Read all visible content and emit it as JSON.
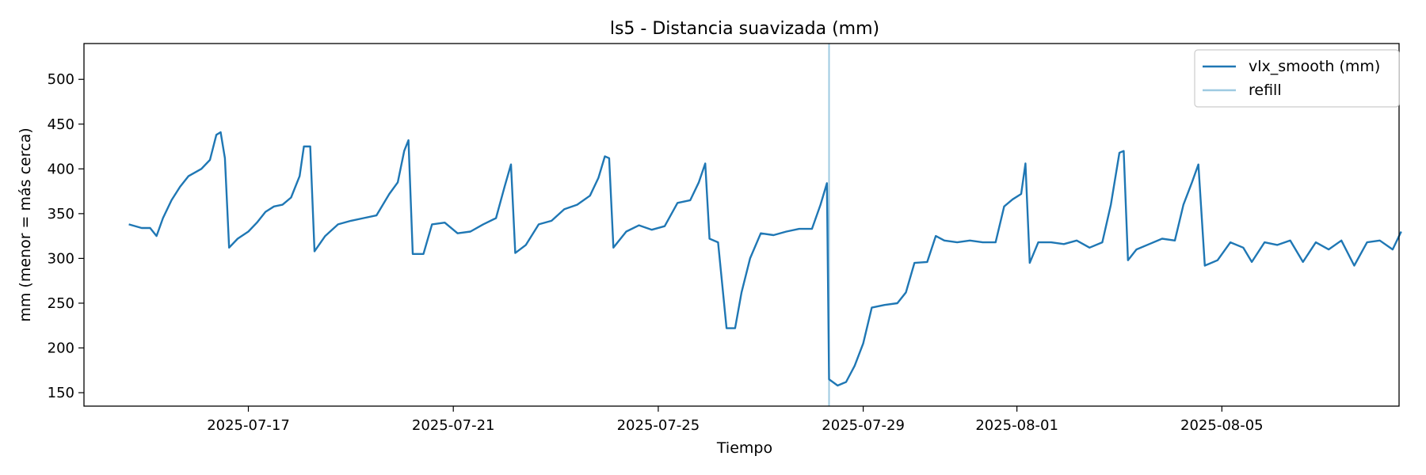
{
  "chart_data": {
    "type": "line",
    "title": "ls5 - Distancia suavizada (mm)",
    "xlabel": "Tiempo",
    "ylabel": "mm (menor = más cerca)",
    "x_range": [
      "2025-07-13T19:00",
      "2025-08-08T11:00"
    ],
    "ylim": [
      135,
      540
    ],
    "x_ticks": [
      "2025-07-17",
      "2025-07-21",
      "2025-07-25",
      "2025-07-29",
      "2025-08-01",
      "2025-08-05"
    ],
    "y_ticks": [
      150,
      200,
      250,
      300,
      350,
      400,
      450,
      500
    ],
    "grid": false,
    "legend_position": "top-right",
    "series": [
      {
        "name": "vlx_smooth (mm)",
        "color": "#1f77b4",
        "points": [
          [
            "2025-07-14T16:00",
            338
          ],
          [
            "2025-07-14T22:00",
            334
          ],
          [
            "2025-07-15T02:00",
            334
          ],
          [
            "2025-07-15T05:00",
            325
          ],
          [
            "2025-07-15T08:00",
            345
          ],
          [
            "2025-07-15T12:00",
            365
          ],
          [
            "2025-07-15T16:00",
            380
          ],
          [
            "2025-07-15T20:00",
            392
          ],
          [
            "2025-07-16T02:00",
            400
          ],
          [
            "2025-07-16T06:00",
            410
          ],
          [
            "2025-07-16T09:00",
            438
          ],
          [
            "2025-07-16T11:00",
            441
          ],
          [
            "2025-07-16T13:00",
            412
          ],
          [
            "2025-07-16T15:00",
            312
          ],
          [
            "2025-07-16T19:00",
            322
          ],
          [
            "2025-07-17T00:00",
            330
          ],
          [
            "2025-07-17T04:00",
            340
          ],
          [
            "2025-07-17T08:00",
            352
          ],
          [
            "2025-07-17T12:00",
            358
          ],
          [
            "2025-07-17T16:00",
            360
          ],
          [
            "2025-07-17T20:00",
            368
          ],
          [
            "2025-07-18T00:00",
            392
          ],
          [
            "2025-07-18T02:00",
            425
          ],
          [
            "2025-07-18T05:00",
            425
          ],
          [
            "2025-07-18T07:00",
            308
          ],
          [
            "2025-07-18T12:00",
            325
          ],
          [
            "2025-07-18T18:00",
            338
          ],
          [
            "2025-07-19T00:00",
            342
          ],
          [
            "2025-07-19T06:00",
            345
          ],
          [
            "2025-07-19T12:00",
            348
          ],
          [
            "2025-07-19T18:00",
            372
          ],
          [
            "2025-07-19T22:00",
            385
          ],
          [
            "2025-07-20T01:00",
            420
          ],
          [
            "2025-07-20T03:00",
            432
          ],
          [
            "2025-07-20T05:00",
            305
          ],
          [
            "2025-07-20T10:00",
            305
          ],
          [
            "2025-07-20T14:00",
            338
          ],
          [
            "2025-07-20T20:00",
            340
          ],
          [
            "2025-07-21T02:00",
            328
          ],
          [
            "2025-07-21T08:00",
            330
          ],
          [
            "2025-07-21T14:00",
            338
          ],
          [
            "2025-07-21T20:00",
            345
          ],
          [
            "2025-07-22T00:00",
            380
          ],
          [
            "2025-07-22T03:00",
            405
          ],
          [
            "2025-07-22T05:00",
            306
          ],
          [
            "2025-07-22T10:00",
            315
          ],
          [
            "2025-07-22T16:00",
            338
          ],
          [
            "2025-07-22T22:00",
            342
          ],
          [
            "2025-07-23T04:00",
            355
          ],
          [
            "2025-07-23T10:00",
            360
          ],
          [
            "2025-07-23T16:00",
            370
          ],
          [
            "2025-07-23T20:00",
            390
          ],
          [
            "2025-07-23T23:00",
            414
          ],
          [
            "2025-07-24T01:00",
            412
          ],
          [
            "2025-07-24T03:00",
            312
          ],
          [
            "2025-07-24T09:00",
            330
          ],
          [
            "2025-07-24T15:00",
            337
          ],
          [
            "2025-07-24T21:00",
            332
          ],
          [
            "2025-07-25T03:00",
            336
          ],
          [
            "2025-07-25T09:00",
            362
          ],
          [
            "2025-07-25T15:00",
            365
          ],
          [
            "2025-07-25T19:00",
            385
          ],
          [
            "2025-07-25T22:00",
            406
          ],
          [
            "2025-07-26T00:00",
            322
          ],
          [
            "2025-07-26T04:00",
            318
          ],
          [
            "2025-07-26T08:00",
            222
          ],
          [
            "2025-07-26T12:00",
            222
          ],
          [
            "2025-07-26T15:00",
            262
          ],
          [
            "2025-07-26T19:00",
            300
          ],
          [
            "2025-07-27T00:00",
            328
          ],
          [
            "2025-07-27T06:00",
            326
          ],
          [
            "2025-07-27T12:00",
            330
          ],
          [
            "2025-07-27T18:00",
            333
          ],
          [
            "2025-07-28T00:00",
            333
          ],
          [
            "2025-07-28T04:00",
            360
          ],
          [
            "2025-07-28T07:00",
            384
          ],
          [
            "2025-07-28T08:00",
            165
          ],
          [
            "2025-07-28T12:00",
            158
          ],
          [
            "2025-07-28T16:00",
            162
          ],
          [
            "2025-07-28T20:00",
            180
          ],
          [
            "2025-07-29T00:00",
            205
          ],
          [
            "2025-07-29T04:00",
            245
          ],
          [
            "2025-07-29T10:00",
            248
          ],
          [
            "2025-07-29T16:00",
            250
          ],
          [
            "2025-07-29T20:00",
            262
          ],
          [
            "2025-07-30T00:00",
            295
          ],
          [
            "2025-07-30T06:00",
            296
          ],
          [
            "2025-07-30T10:00",
            325
          ],
          [
            "2025-07-30T14:00",
            320
          ],
          [
            "2025-07-30T20:00",
            318
          ],
          [
            "2025-07-31T02:00",
            320
          ],
          [
            "2025-07-31T08:00",
            318
          ],
          [
            "2025-07-31T14:00",
            318
          ],
          [
            "2025-07-31T18:00",
            358
          ],
          [
            "2025-07-31T22:00",
            366
          ],
          [
            "2025-08-01T02:00",
            372
          ],
          [
            "2025-08-01T04:00",
            406
          ],
          [
            "2025-08-01T06:00",
            295
          ],
          [
            "2025-08-01T10:00",
            318
          ],
          [
            "2025-08-01T16:00",
            318
          ],
          [
            "2025-08-01T22:00",
            316
          ],
          [
            "2025-08-02T04:00",
            320
          ],
          [
            "2025-08-02T10:00",
            312
          ],
          [
            "2025-08-02T16:00",
            318
          ],
          [
            "2025-08-02T20:00",
            360
          ],
          [
            "2025-08-03T00:00",
            418
          ],
          [
            "2025-08-03T02:00",
            420
          ],
          [
            "2025-08-03T04:00",
            298
          ],
          [
            "2025-08-03T08:00",
            310
          ],
          [
            "2025-08-03T14:00",
            316
          ],
          [
            "2025-08-03T20:00",
            322
          ],
          [
            "2025-08-04T02:00",
            320
          ],
          [
            "2025-08-04T06:00",
            360
          ],
          [
            "2025-08-04T10:00",
            385
          ],
          [
            "2025-08-04T13:00",
            405
          ],
          [
            "2025-08-04T16:00",
            292
          ],
          [
            "2025-08-04T22:00",
            298
          ],
          [
            "2025-08-05T04:00",
            318
          ],
          [
            "2025-08-05T10:00",
            312
          ],
          [
            "2025-08-05T14:00",
            296
          ],
          [
            "2025-08-05T20:00",
            318
          ],
          [
            "2025-08-06T02:00",
            315
          ],
          [
            "2025-08-06T08:00",
            320
          ],
          [
            "2025-08-06T14:00",
            296
          ],
          [
            "2025-08-06T20:00",
            318
          ],
          [
            "2025-08-07T02:00",
            310
          ],
          [
            "2025-08-07T08:00",
            320
          ],
          [
            "2025-08-07T14:00",
            292
          ],
          [
            "2025-08-07T20:00",
            318
          ],
          [
            "2025-08-08T02:00",
            320
          ],
          [
            "2025-08-08T08:00",
            310
          ],
          [
            "2025-08-08T12:00",
            330
          ]
        ]
      },
      {
        "name": "refill",
        "color": "#9ecae1",
        "events": [
          "2025-07-28T08:00"
        ]
      }
    ]
  }
}
